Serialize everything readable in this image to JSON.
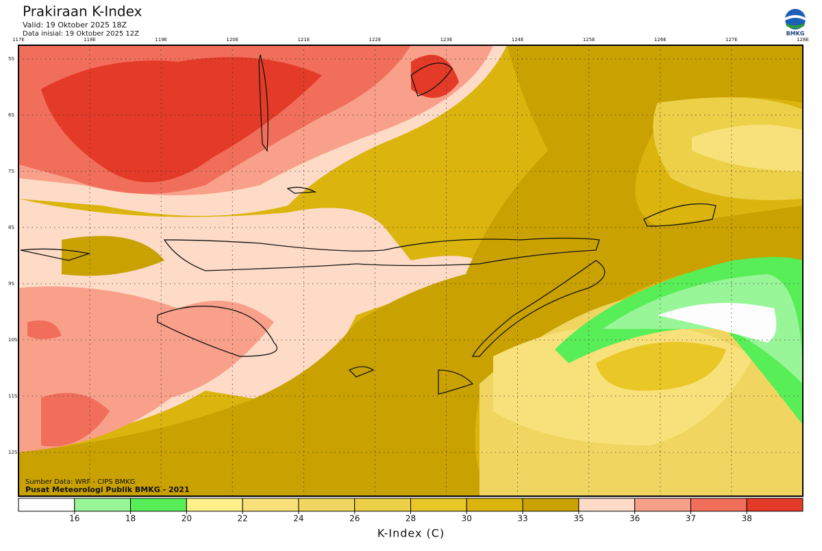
{
  "header": {
    "title": "Prakiraan K-Index",
    "valid": "Valid: 19 Oktober 2025 18Z",
    "initial": "Data inisial: 19 Oktober 2025 12Z",
    "logo": "BMKG"
  },
  "map": {
    "lon_labels": [
      "117E",
      "118E",
      "119E",
      "120E",
      "121E",
      "122E",
      "123E",
      "124E",
      "125E",
      "126E",
      "127E",
      "128E"
    ],
    "lat_labels": [
      "5S",
      "6S",
      "7S",
      "8S",
      "9S",
      "10S",
      "11S",
      "12S"
    ]
  },
  "credits": [
    "Sumber Data: WRF - CIPS BMKG",
    "Pusat Meteorologi Publik BMKG - 2021"
  ],
  "legend": {
    "colors": [
      "#fdfdfd",
      "#98f598",
      "#58ee58",
      "#fff08a",
      "#f8e17a",
      "#f0d660",
      "#ecd048",
      "#e8c726",
      "#dbb50e",
      "#c9a100",
      "#fddbc7",
      "#f9a08a",
      "#f06e5a",
      "#e43a28"
    ],
    "ticks": [
      16,
      18,
      20,
      22,
      24,
      26,
      28,
      30,
      33,
      35,
      36,
      37,
      38
    ],
    "label": "K-Index (C)"
  }
}
